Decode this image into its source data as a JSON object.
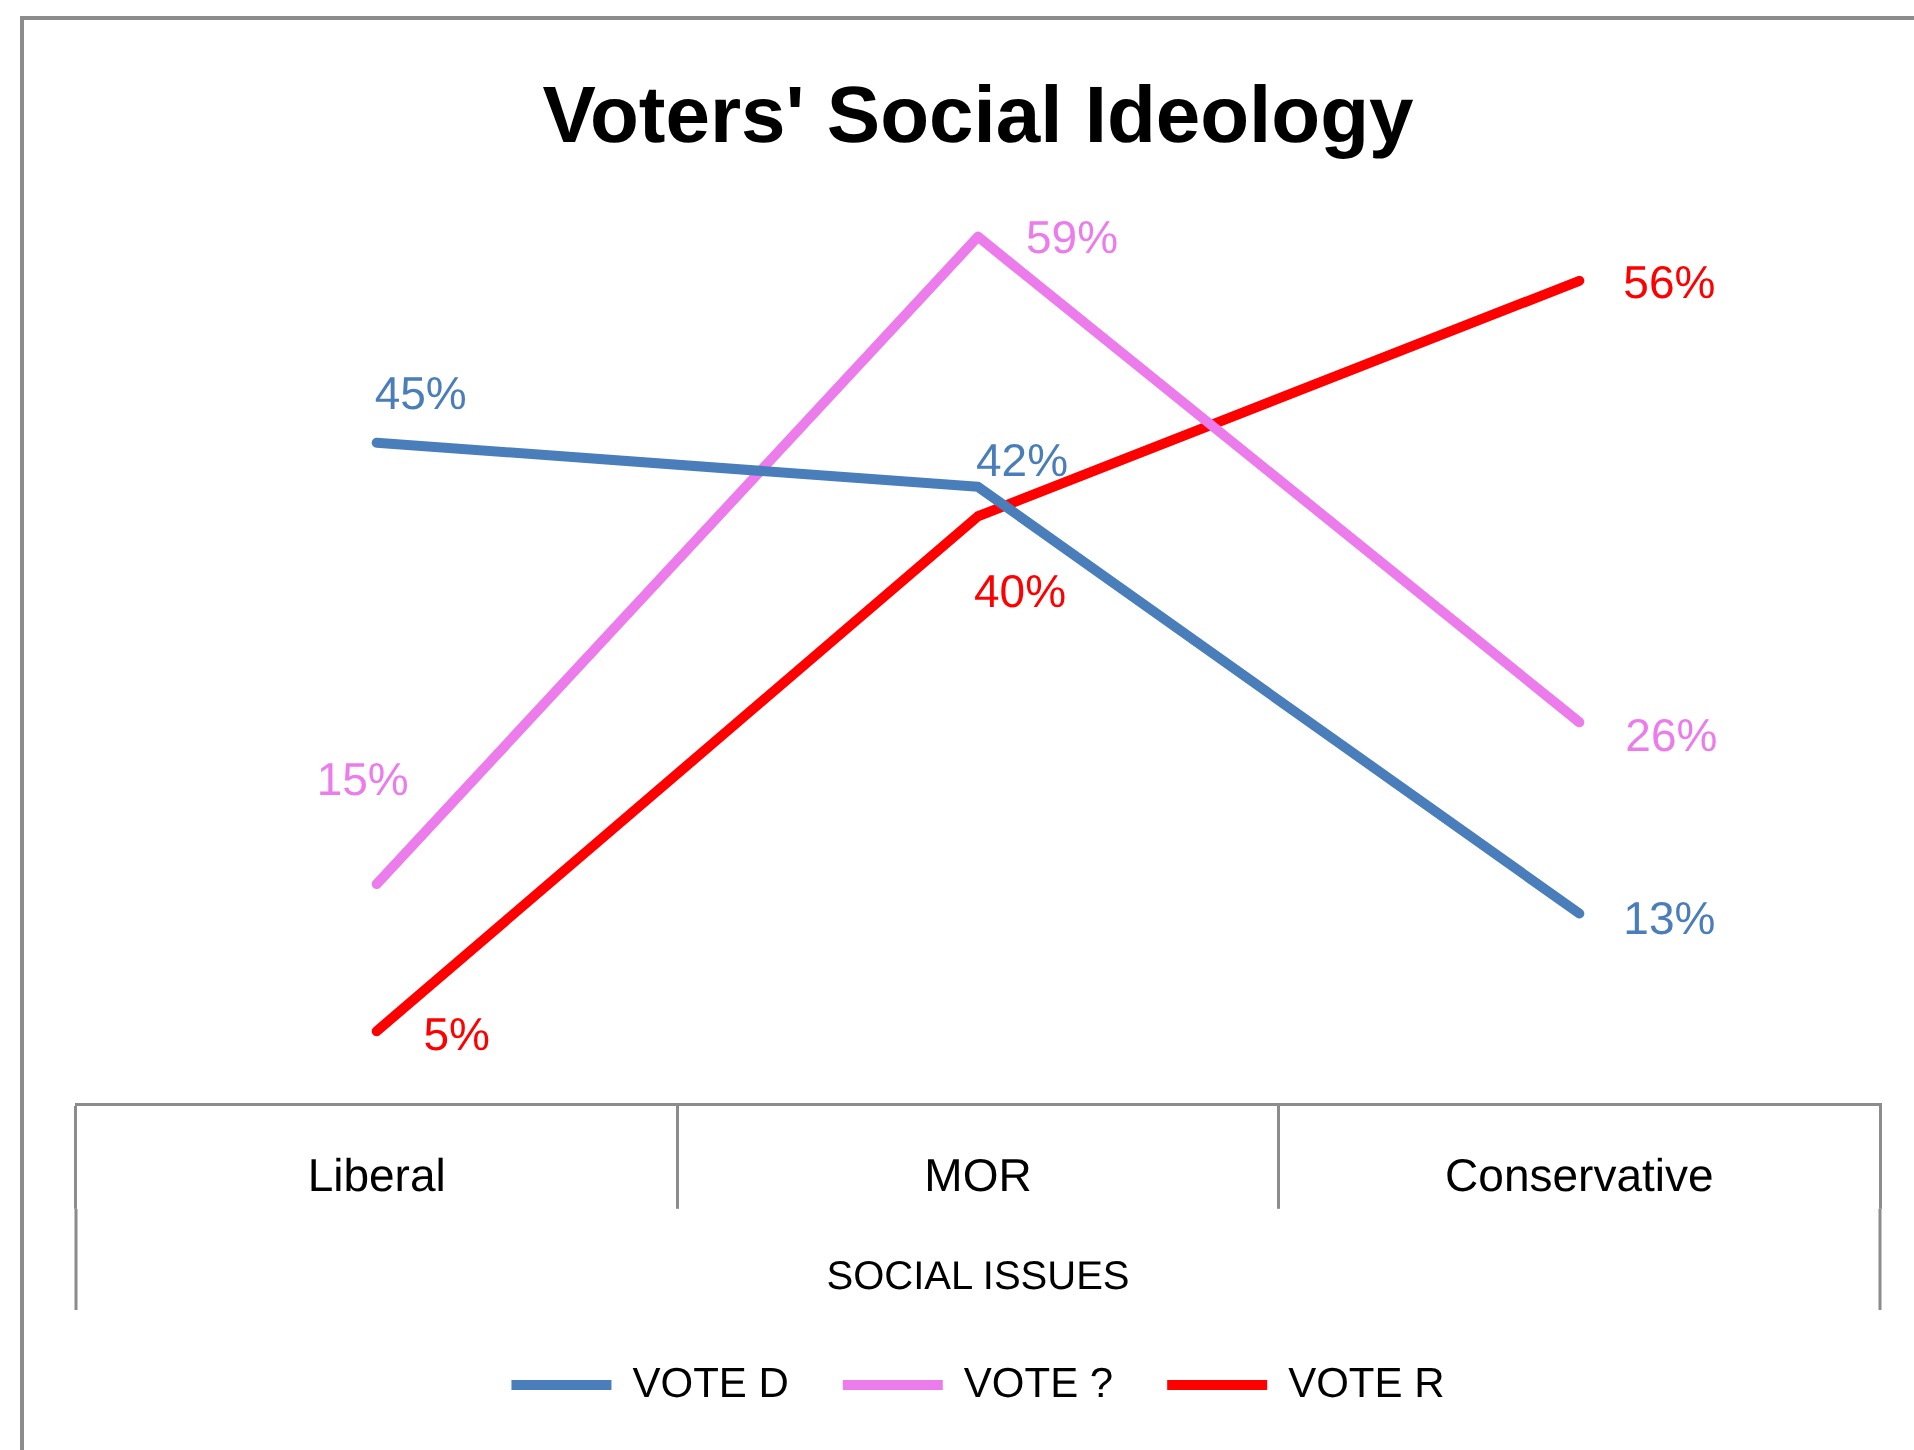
{
  "chart_data": {
    "type": "line",
    "title": "Voters' Social Ideology",
    "xlabel": "SOCIAL ISSUES",
    "categories": [
      "Liberal",
      "MOR",
      "Conservative"
    ],
    "series": [
      {
        "name": "VOTE D",
        "color": "#4a7ebb",
        "values": [
          45,
          42,
          13
        ],
        "value_labels": [
          "45%",
          "42%",
          "13%"
        ]
      },
      {
        "name": "VOTE ?",
        "color": "#ec7cec",
        "values": [
          15,
          59,
          26
        ],
        "value_labels": [
          "15%",
          "59%",
          "26%"
        ]
      },
      {
        "name": "VOTE R",
        "color": "#ff0000",
        "values": [
          5,
          40,
          56
        ],
        "value_labels": [
          "5%",
          "40%",
          "56%"
        ]
      }
    ],
    "legend": "bottom",
    "marker": "none",
    "line_style": "solid",
    "tick_labels": "x",
    "grid": false
  }
}
